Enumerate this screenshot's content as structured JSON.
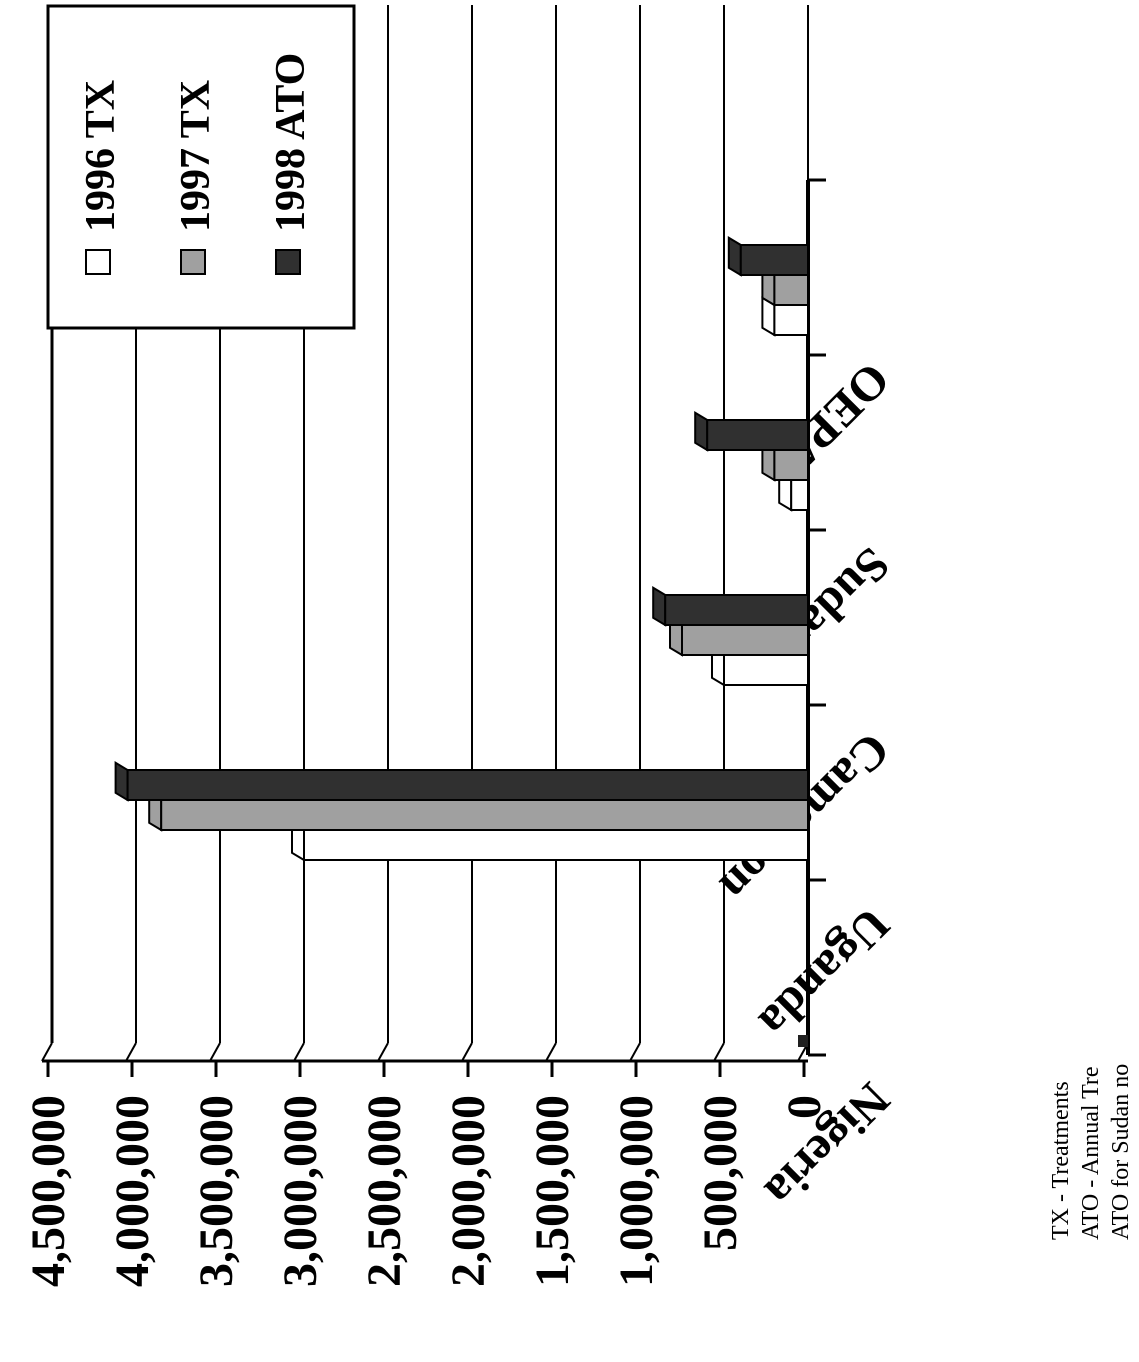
{
  "chart_data": {
    "type": "bar",
    "orientation": "rotated-90",
    "categories": [
      "Nigeria",
      "Uganda",
      "Cameroon",
      "Sudan",
      "OEPA"
    ],
    "series": [
      {
        "name": "1996 TX",
        "color": "#ffffff",
        "values": [
          0,
          3000000,
          500000,
          100000,
          200000
        ]
      },
      {
        "name": "1997 TX",
        "color": "#a0a0a0",
        "values": [
          0,
          3850000,
          750000,
          200000,
          200000
        ]
      },
      {
        "name": "1998 ATO",
        "color": "#303030",
        "values": [
          0,
          4050000,
          850000,
          600000,
          400000
        ]
      }
    ],
    "ytick_labels": [
      "0",
      "500,000",
      "1,000,000",
      "1,500,000",
      "2,000,000",
      "2,500,000",
      "3,000,000",
      "3,500,000",
      "4,000,000",
      "4,500,000"
    ],
    "ylim": [
      0,
      4500000
    ],
    "grid": true,
    "legend": "top-right",
    "title": "",
    "xlabel": "",
    "ylabel": ""
  },
  "notes": [
    "TX - Treatments",
    "ATO - Annual Tre",
    "ATO for Sudan no"
  ]
}
